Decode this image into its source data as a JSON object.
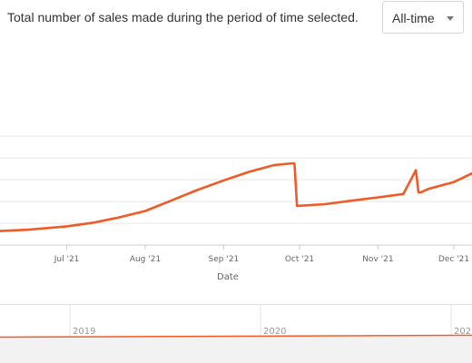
{
  "header": {
    "description": "Total number of sales made during the period of time selected.",
    "period_select": {
      "selected": "All-time"
    }
  },
  "colors": {
    "series": "#f15a24",
    "grid": "#e6e6e6",
    "axis_text": "#666666",
    "navigator_mask": "#f2f2f2"
  },
  "icons": {
    "dropdown": "caret-down-icon"
  },
  "chart_data": [
    {
      "type": "line",
      "xlabel": "Date",
      "ylabel": "",
      "x_tick_labels": [
        "Jul '21",
        "Aug '21",
        "Sep '21",
        "Oct '21",
        "Nov '21",
        "Dec '21"
      ],
      "y_tick_labels": [],
      "grid": true,
      "legend": "none",
      "series": [
        {
          "x": [
            "2021-06-01",
            "2021-06-16",
            "2021-07-01",
            "2021-07-11",
            "2021-07-21",
            "2021-08-01",
            "2021-08-11",
            "2021-08-21",
            "2021-09-01",
            "2021-09-11",
            "2021-09-21",
            "2021-09-28",
            "2021-09-29",
            "2021-09-30",
            "2021-10-11",
            "2021-10-21",
            "2021-11-01",
            "2021-11-11",
            "2021-11-16",
            "2021-11-17",
            "2021-11-18",
            "2021-11-21",
            "2021-12-01",
            "2021-12-08",
            "2021-12-10",
            "2021-12-15",
            "2021-12-20"
          ],
          "y": [
            8,
            9,
            11,
            13,
            16,
            20,
            26,
            32,
            38,
            43,
            47,
            48,
            48,
            23,
            24,
            26,
            28,
            30,
            44,
            31,
            31,
            33,
            37,
            42,
            43,
            47,
            53
          ]
        }
      ]
    },
    {
      "type": "line",
      "x_tick_labels": [
        "2019",
        "2020",
        "202"
      ],
      "grid": true,
      "legend": "none"
    }
  ]
}
